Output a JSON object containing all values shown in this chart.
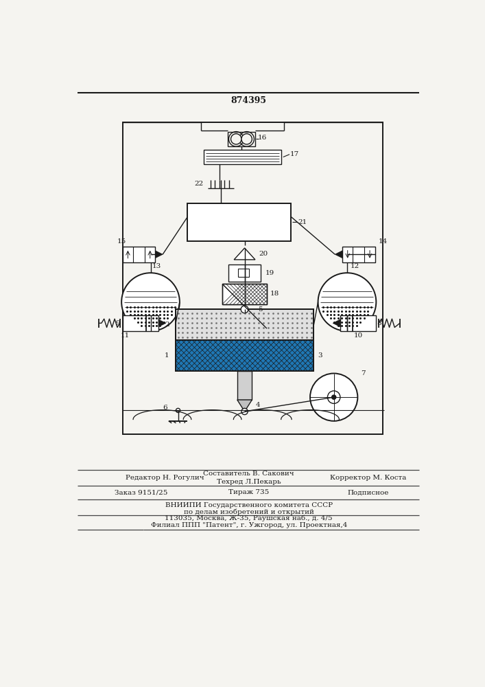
{
  "patent_number": "874395",
  "background_color": "#f5f4f0",
  "line_color": "#1a1a1a",
  "editor_line": "Редактор Н. Рогулич",
  "composer_line": "Составитель В. Сакович",
  "techred_line": "Техред Л.Пекарь",
  "corrector_line": "Корректор М. Коста",
  "order_line": "Заказ 9151/25",
  "tirazh_line": "Тираж 735",
  "podpisnoe_line": "Подписное",
  "vniip_line1": "ВНИИПИ Государственного комитета СССР",
  "vniip_line2": "по делам изобретений и открытий",
  "vniip_line3": "113035, Москва, Ж-35, Раушская наб., д. 4/5",
  "filial_line": "Филиал ППП \"Патент\", г. Ужгород, ул. Проектная,4"
}
